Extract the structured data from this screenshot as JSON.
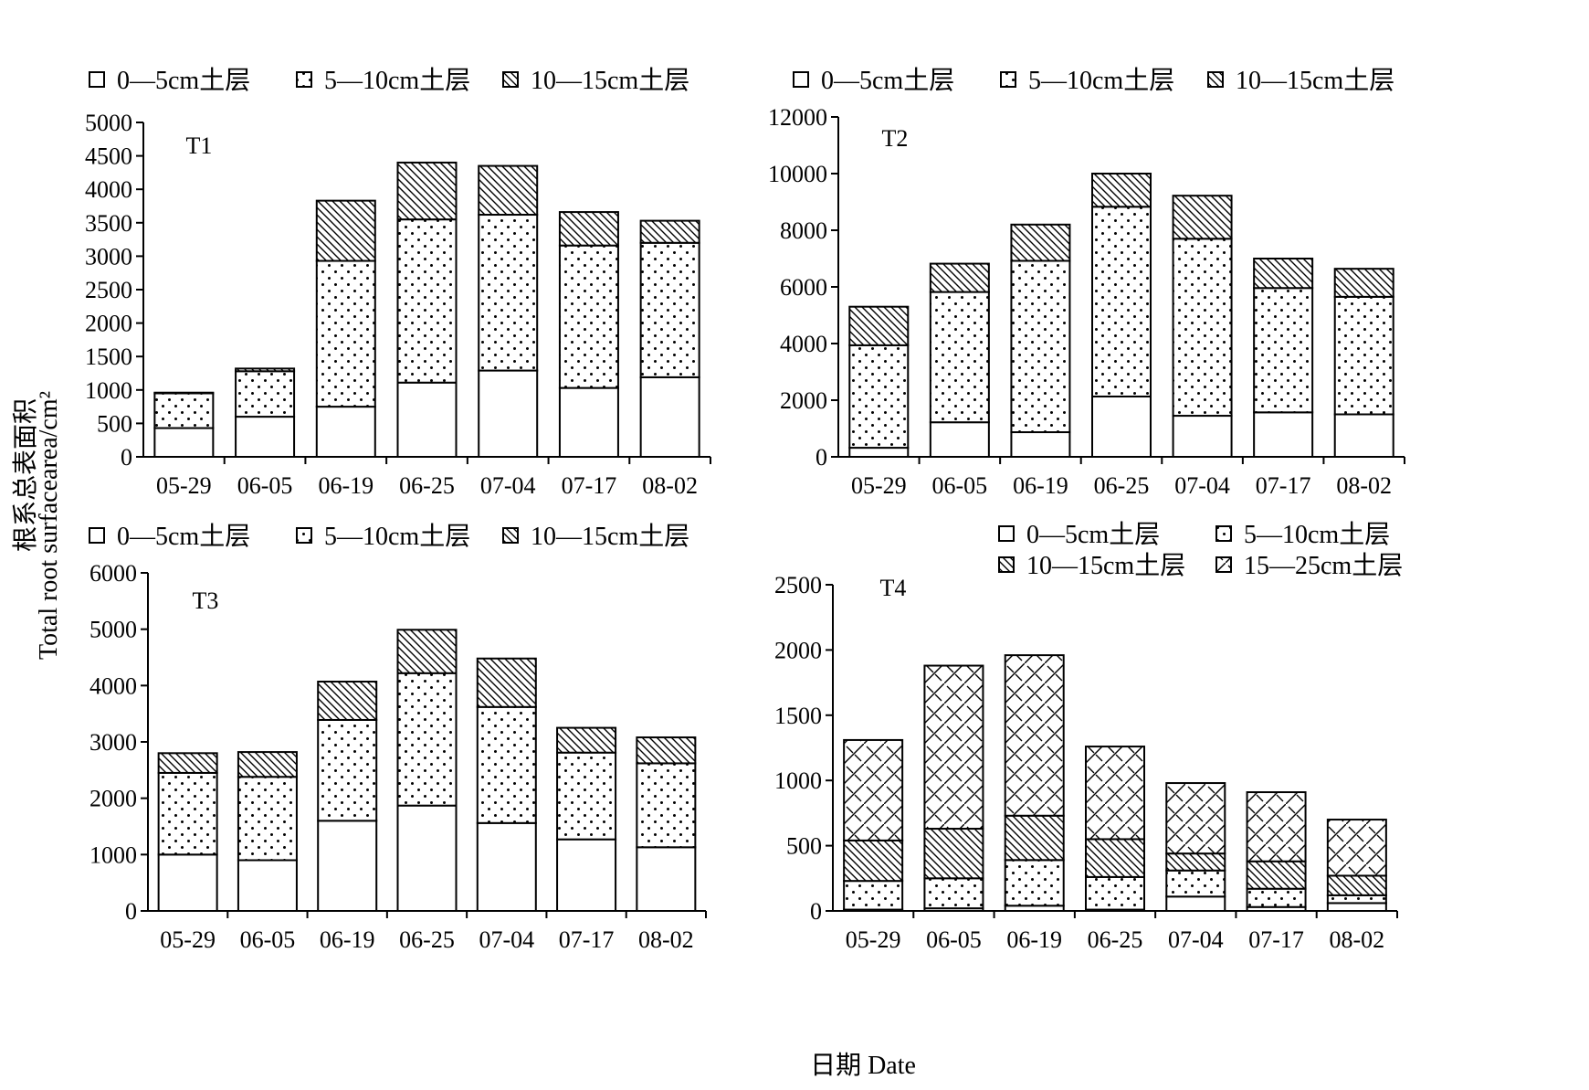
{
  "figure": {
    "ylabel_cn": "根系总表面积",
    "ylabel_en": "Total root surfacearea/cm²",
    "xlabel": "日期 Date"
  },
  "chart_data": [
    {
      "type": "bar",
      "stacked": true,
      "title": "T1",
      "categories": [
        "05-29",
        "06-05",
        "06-19",
        "06-25",
        "07-04",
        "07-17",
        "08-02"
      ],
      "ylim": [
        0,
        5000
      ],
      "yticks": [
        0,
        500,
        1000,
        1500,
        2000,
        2500,
        3000,
        3500,
        4000,
        4500,
        5000
      ],
      "legend_position": "top",
      "series": [
        {
          "name": "0—5cm土层",
          "pattern": "blank",
          "values": [
            430,
            600,
            750,
            1110,
            1290,
            1030,
            1190
          ]
        },
        {
          "name": "5—10cm土层",
          "pattern": "dots",
          "values": [
            520,
            680,
            2180,
            2440,
            2330,
            2130,
            2010
          ]
        },
        {
          "name": "10—15cm土层",
          "pattern": "hatch",
          "values": [
            10,
            40,
            900,
            850,
            730,
            500,
            330
          ]
        }
      ]
    },
    {
      "type": "bar",
      "stacked": true,
      "title": "T2",
      "categories": [
        "05-29",
        "06-05",
        "06-19",
        "06-25",
        "07-04",
        "07-17",
        "08-02"
      ],
      "ylim": [
        0,
        12000
      ],
      "yticks": [
        0,
        2000,
        4000,
        6000,
        8000,
        10000,
        12000
      ],
      "legend_position": "top",
      "series": [
        {
          "name": "0—5cm土层",
          "pattern": "blank",
          "values": [
            320,
            1220,
            870,
            2130,
            1450,
            1570,
            1500
          ]
        },
        {
          "name": "5—10cm土层",
          "pattern": "dots",
          "values": [
            3620,
            4600,
            6050,
            6700,
            6250,
            4390,
            4150
          ]
        },
        {
          "name": "10—15cm土层",
          "pattern": "hatch",
          "values": [
            1360,
            1000,
            1280,
            1170,
            1520,
            1040,
            990
          ]
        }
      ]
    },
    {
      "type": "bar",
      "stacked": true,
      "title": "T3",
      "categories": [
        "05-29",
        "06-05",
        "06-19",
        "06-25",
        "07-04",
        "07-17",
        "08-02"
      ],
      "ylim": [
        0,
        6000
      ],
      "yticks": [
        0,
        1000,
        2000,
        3000,
        4000,
        5000,
        6000
      ],
      "legend_position": "top",
      "series": [
        {
          "name": "0—5cm土层",
          "pattern": "blank",
          "values": [
            1000,
            900,
            1600,
            1870,
            1560,
            1270,
            1130
          ]
        },
        {
          "name": "5—10cm土层",
          "pattern": "dots",
          "values": [
            1450,
            1480,
            1790,
            2350,
            2060,
            1540,
            1490
          ]
        },
        {
          "name": "10—15cm土层",
          "pattern": "hatch",
          "values": [
            350,
            440,
            680,
            770,
            860,
            440,
            460
          ]
        }
      ]
    },
    {
      "type": "bar",
      "stacked": true,
      "title": "T4",
      "categories": [
        "05-29",
        "06-05",
        "06-19",
        "06-25",
        "07-04",
        "07-17",
        "08-02"
      ],
      "ylim": [
        0,
        2500
      ],
      "yticks": [
        0,
        500,
        1000,
        1500,
        2000,
        2500
      ],
      "legend_position": "top-right",
      "series": [
        {
          "name": "0—5cm土层",
          "pattern": "blank",
          "values": [
            10,
            20,
            40,
            10,
            110,
            30,
            60
          ]
        },
        {
          "name": "5—10cm土层",
          "pattern": "dots",
          "values": [
            220,
            230,
            350,
            250,
            200,
            140,
            60
          ]
        },
        {
          "name": "10—15cm土层",
          "pattern": "hatch",
          "values": [
            310,
            380,
            340,
            290,
            130,
            210,
            150
          ]
        },
        {
          "name": "15—25cm土层",
          "pattern": "zigzag",
          "values": [
            770,
            1250,
            1230,
            710,
            540,
            530,
            430
          ]
        }
      ]
    }
  ]
}
